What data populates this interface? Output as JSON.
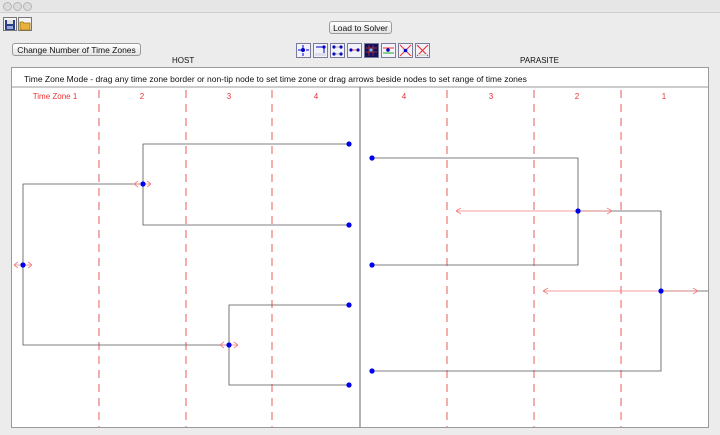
{
  "window": {
    "buttons": [
      "close-dot",
      "minimize-dot",
      "zoom-dot"
    ]
  },
  "toolbar": {
    "save_icon": "save-icon",
    "open_icon": "open-folder-icon",
    "load_label": "Load to Solver",
    "change_tz_label": "Change Number of Time Zones"
  },
  "panels": {
    "host_label": "HOST",
    "parasite_label": "PARASITE"
  },
  "mode_text": "Time Zone Mode - drag any time zone border or non-tip node to set time zone or drag arrows beside nodes to set range of time zones",
  "colors": {
    "timezone": "#ee3333",
    "node": "#0000ee",
    "branch": "#555555",
    "arrow": "#f08080"
  },
  "host": {
    "timezones": [
      "Time Zone 1",
      "2",
      "3",
      "4"
    ]
  },
  "parasite": {
    "timezones": [
      "4",
      "3",
      "2",
      "1"
    ]
  },
  "mode_icons": [
    "move-node-icon",
    "solve-icon",
    "dots-icon",
    "dots-arrow-icon",
    "grid-icon",
    "color-arrows-icon",
    "crossed-arrows-icon",
    "delete-icon"
  ]
}
